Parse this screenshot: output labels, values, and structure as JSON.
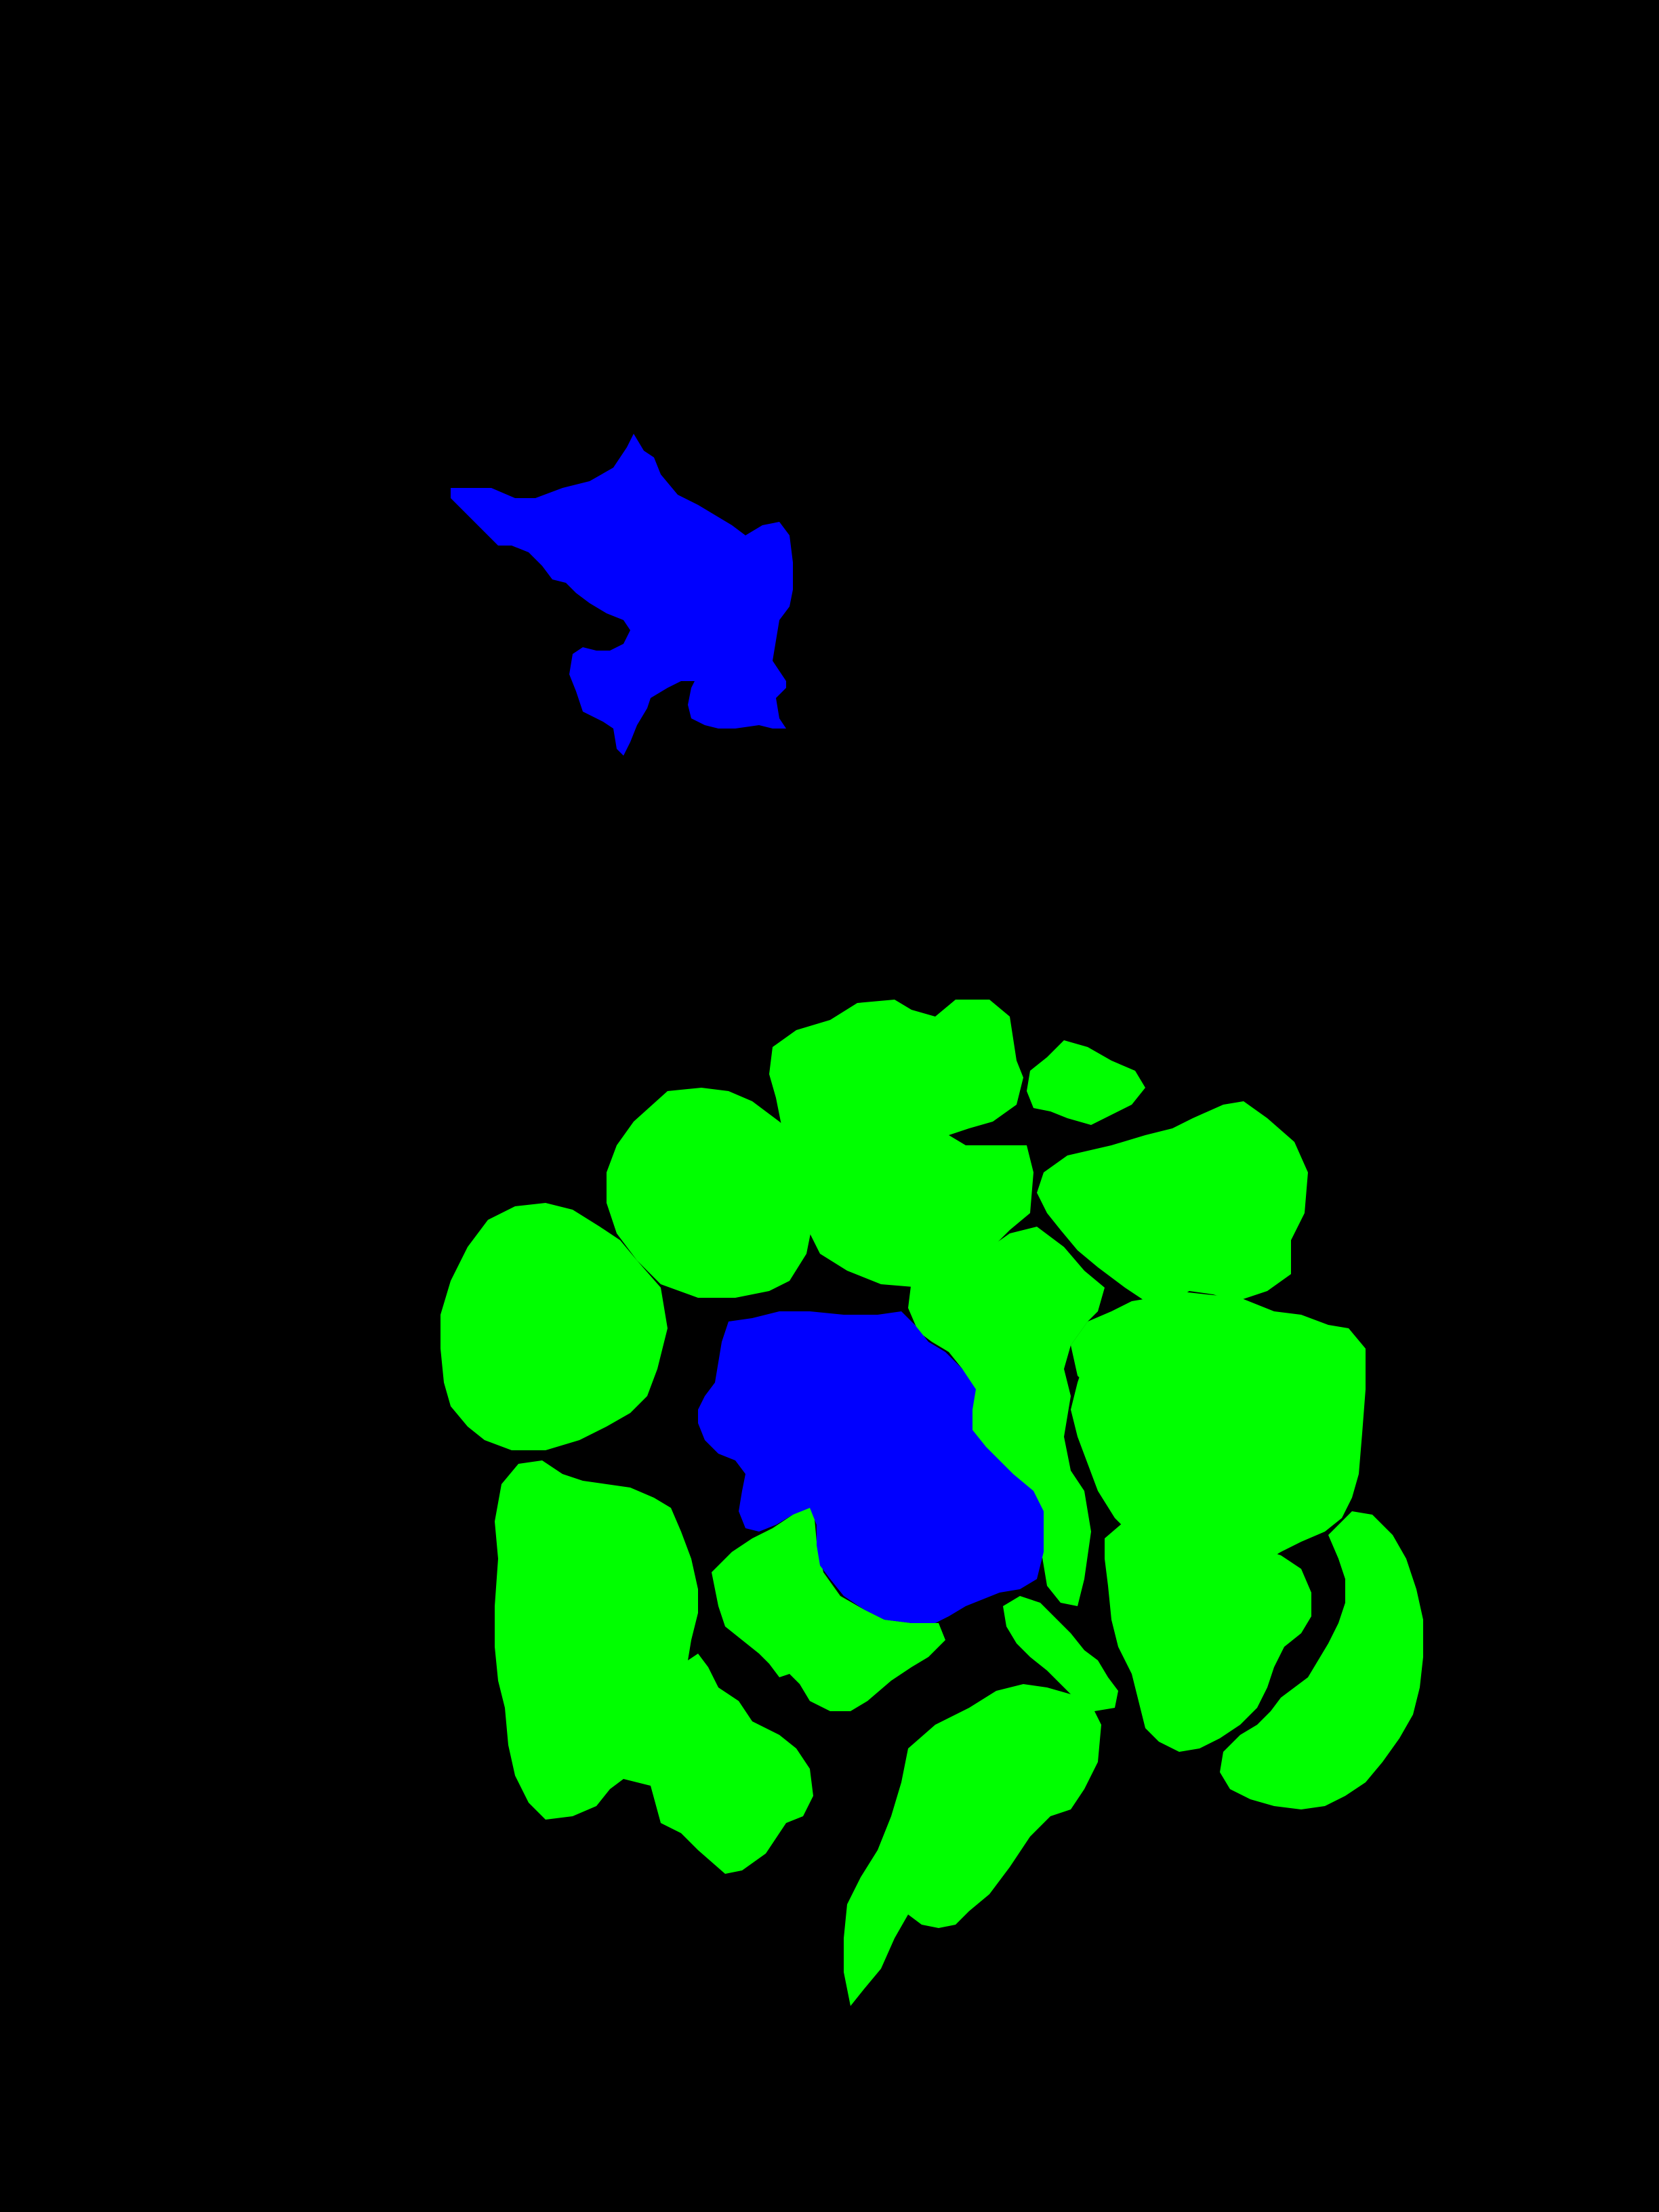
{
  "background": "#000000",
  "classes": {
    "primary": {
      "color": "#0000ff"
    },
    "secondary": {
      "color": "#00ff00"
    }
  }
}
